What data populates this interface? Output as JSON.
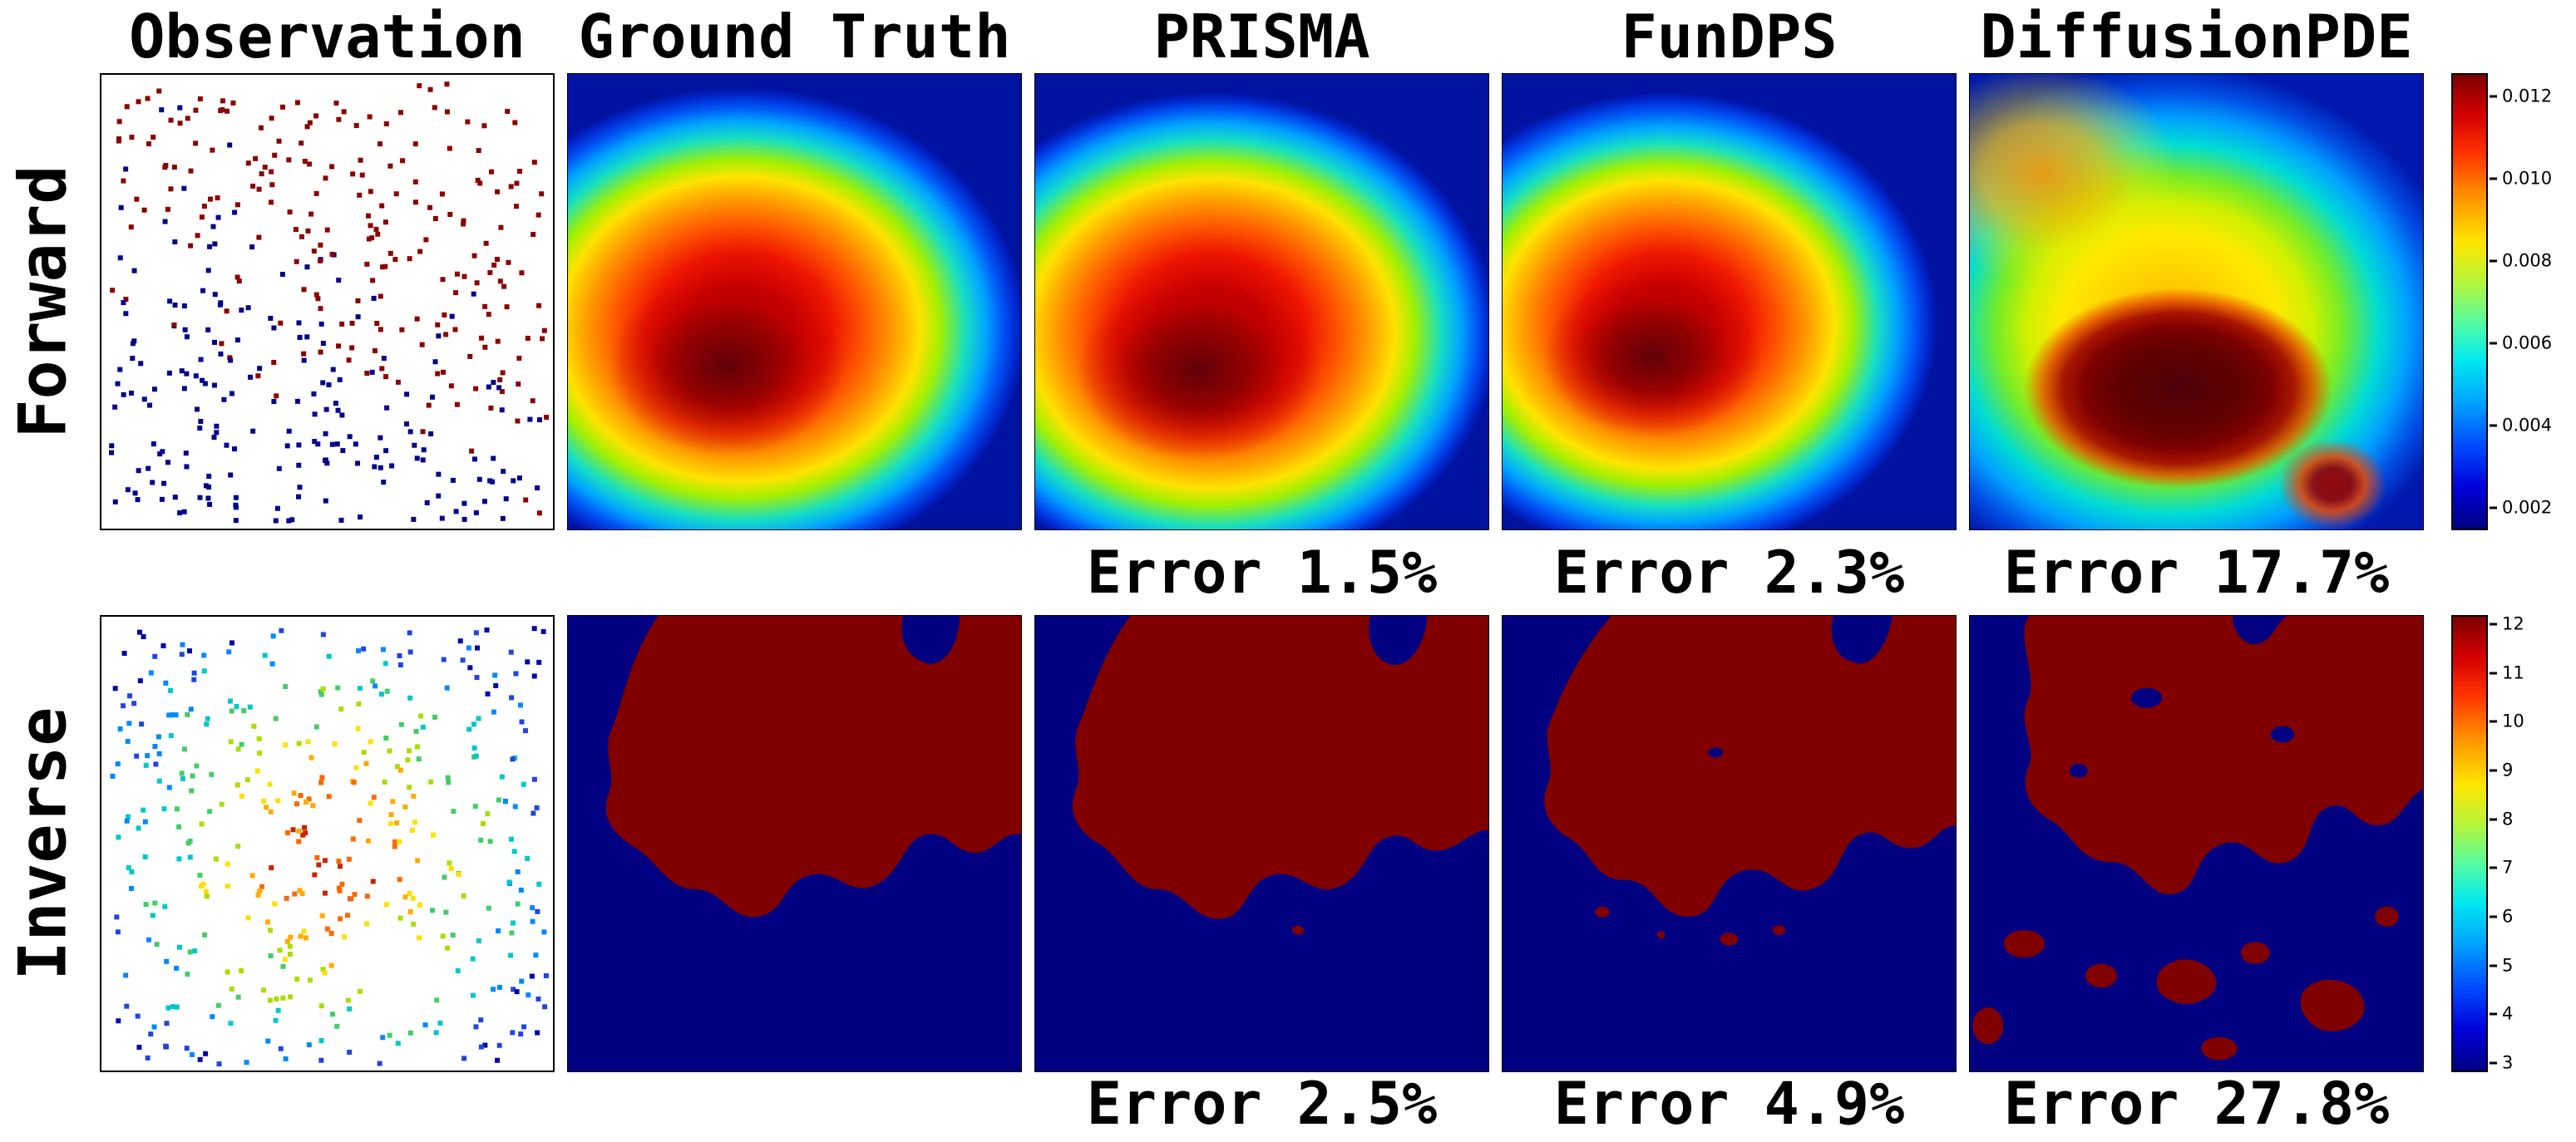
{
  "figure": {
    "columns": [
      "Observation",
      "Ground Truth",
      "PRISMA",
      "FunDPS",
      "DiffusionPDE"
    ],
    "rows": [
      {
        "label": "Forward",
        "errors": [
          {
            "method": "PRISMA",
            "label": "Error 1.5%"
          },
          {
            "method": "FunDPS",
            "label": "Error 2.3%"
          },
          {
            "method": "DiffusionPDE",
            "label": "Error 17.7%"
          }
        ],
        "colorbar_ticks": [
          "0.012",
          "0.010",
          "0.008",
          "0.006",
          "0.004",
          "0.002"
        ]
      },
      {
        "label": "Inverse",
        "errors": [
          {
            "method": "PRISMA",
            "label": "Error 2.5%"
          },
          {
            "method": "FunDPS",
            "label": "Error 4.9%"
          },
          {
            "method": "DiffusionPDE",
            "label": "Error 27.8%"
          }
        ],
        "colorbar_ticks": [
          "12",
          "11",
          "10",
          "9",
          "8",
          "7",
          "6",
          "5",
          "4",
          "3"
        ]
      }
    ],
    "colormap": "jet",
    "colors": {
      "inverse_low": "#000080",
      "inverse_high": "#800000",
      "text": "#000000",
      "background": "#ffffff"
    },
    "observation": {
      "forward_palette": [
        "#00008b",
        "#8b0000"
      ],
      "inverse_palette": [
        "#cc2200",
        "#ff6600",
        "#ffaa00",
        "#ffe000",
        "#aadd00",
        "#44cc66",
        "#00c8c8",
        "#0088ff",
        "#2244dd",
        "#0000aa"
      ]
    }
  },
  "chart_data": [
    {
      "type": "heatmap",
      "title": "Forward",
      "panels": [
        "Observation",
        "Ground Truth",
        "PRISMA",
        "FunDPS",
        "DiffusionPDE"
      ],
      "errors_percent": {
        "PRISMA": 1.5,
        "FunDPS": 2.3,
        "DiffusionPDE": 17.7
      },
      "colorbar_range": [
        0.002,
        0.012
      ],
      "colorbar_ticks": [
        0.002,
        0.004,
        0.006,
        0.008,
        0.01,
        0.012
      ],
      "colormap": "jet",
      "description": "Sparse scattered observation points; smooth jet-colormap field with dark-red core left-of-center and blue borders; DiffusionPDE prediction visibly distorted"
    },
    {
      "type": "heatmap",
      "title": "Inverse",
      "panels": [
        "Observation",
        "Ground Truth",
        "PRISMA",
        "FunDPS",
        "DiffusionPDE"
      ],
      "errors_percent": {
        "PRISMA": 2.5,
        "FunDPS": 4.9,
        "DiffusionPDE": 27.8
      },
      "colorbar_range": [
        3,
        12
      ],
      "colorbar_ticks": [
        3,
        4,
        5,
        6,
        7,
        8,
        9,
        10,
        11,
        12
      ],
      "colormap": "jet",
      "description": "Binary coefficient field: dark-red region (value 12) over navy background (value 3); DiffusionPDE result fragmented with spurious islands"
    }
  ]
}
